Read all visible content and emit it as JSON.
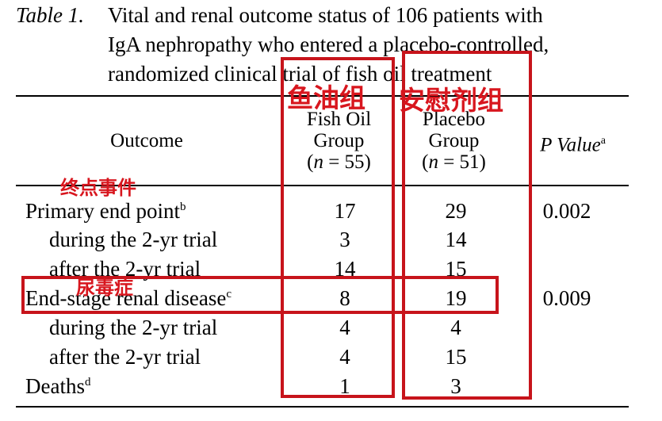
{
  "caption": {
    "label": "Table 1.",
    "line1": "Vital and renal outcome status of 106 patients with",
    "line2": "IgA nephropathy who entered a placebo-controlled,",
    "line3": "randomized clinical trial of fish oil treatment"
  },
  "header": {
    "outcome": "Outcome",
    "fish": {
      "l1": "Fish Oil",
      "l2": "Group",
      "l3": "(n = 55)"
    },
    "placebo": {
      "l1": "Placebo",
      "l2": "Group",
      "l3": "(n = 51)"
    },
    "p_value": "P Value",
    "p_value_sup": "a"
  },
  "rows": [
    {
      "outcome": "Primary end point",
      "sup": "b",
      "fish": "17",
      "placebo": "29",
      "p": "0.002"
    },
    {
      "outcome": "during the 2-yr trial",
      "sup": "",
      "fish": "3",
      "placebo": "14",
      "p": ""
    },
    {
      "outcome": "after the 2-yr trial",
      "sup": "",
      "fish": "14",
      "placebo": "15",
      "p": ""
    },
    {
      "outcome": "End-stage renal disease",
      "sup": "c",
      "fish": "8",
      "placebo": "19",
      "p": "0.009"
    },
    {
      "outcome": "during the 2-yr trial",
      "sup": "",
      "fish": "4",
      "placebo": "4",
      "p": ""
    },
    {
      "outcome": "after the 2-yr trial",
      "sup": "",
      "fish": "4",
      "placebo": "15",
      "p": ""
    },
    {
      "outcome": "Deaths",
      "sup": "d",
      "fish": "1",
      "placebo": "3",
      "p": ""
    }
  ],
  "annotations": {
    "fish_group": "鱼油组",
    "placebo_group": "安慰剂组",
    "end_events": "终点事件",
    "uremia": "尿毒症",
    "color": "#c7141b"
  }
}
